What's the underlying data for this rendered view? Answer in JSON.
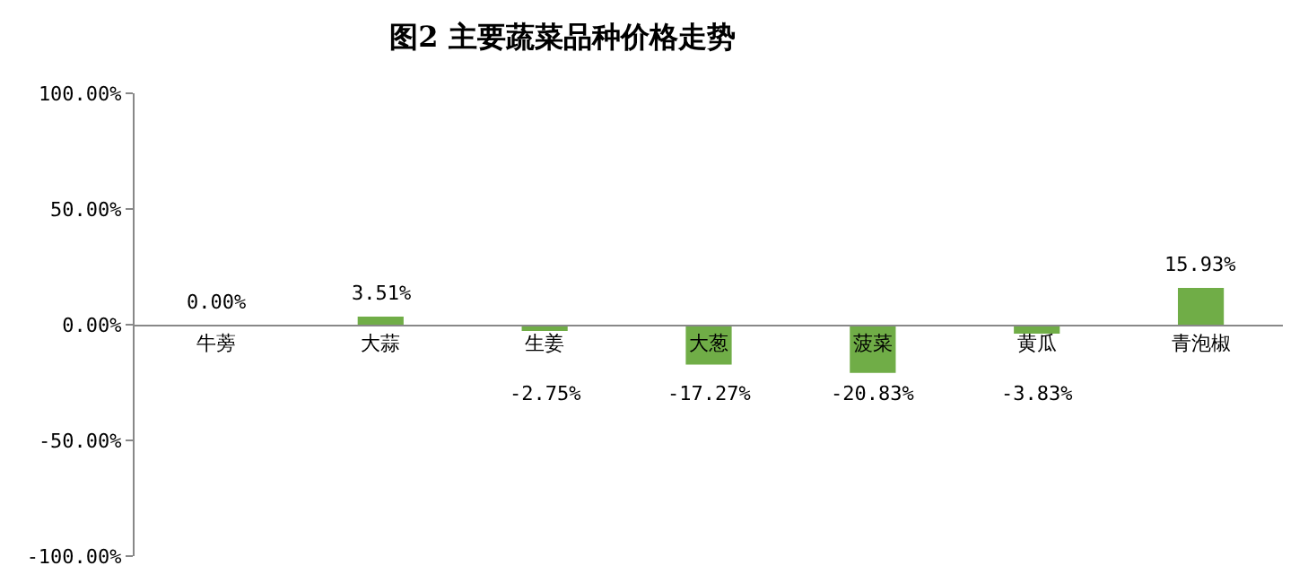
{
  "chart_data": {
    "type": "bar",
    "title": "图2 主要蔬菜品种价格走势",
    "categories": [
      "牛蒡",
      "大蒜",
      "生姜",
      "大葱",
      "菠菜",
      "黄瓜",
      "青泡椒"
    ],
    "values": [
      0,
      3.51,
      -2.75,
      -17.27,
      -20.83,
      -3.83,
      15.93
    ],
    "value_labels": [
      "0.00%",
      "3.51%",
      "-2.75%",
      "-17.27%",
      "-20.83%",
      "-3.83%",
      "15.93%"
    ],
    "color": "#70ad47",
    "ylim": [
      -100,
      100
    ],
    "yticks": [
      {
        "value": -100,
        "label": "-100.00%"
      },
      {
        "value": -50,
        "label": "-50.00%"
      },
      {
        "value": 0,
        "label": "0.00%"
      },
      {
        "value": 50,
        "label": "50.00%"
      },
      {
        "value": 100,
        "label": "100.00%"
      }
    ],
    "grid": false
  }
}
